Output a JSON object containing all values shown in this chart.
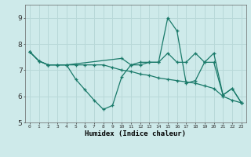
{
  "title": "",
  "xlabel": "Humidex (Indice chaleur)",
  "background_color": "#ceeaea",
  "grid_color": "#b8d8d8",
  "line_color": "#1a7a6a",
  "xlim": [
    -0.5,
    23.5
  ],
  "ylim": [
    5,
    9.5
  ],
  "yticks": [
    5,
    6,
    7,
    8,
    9
  ],
  "xticks": [
    0,
    1,
    2,
    3,
    4,
    5,
    6,
    7,
    8,
    9,
    10,
    11,
    12,
    13,
    14,
    15,
    16,
    17,
    18,
    19,
    20,
    21,
    22,
    23
  ],
  "series1_x": [
    0,
    1,
    2,
    3,
    4,
    10,
    11,
    12,
    13,
    14,
    15,
    16,
    17,
    18,
    19,
    20,
    21,
    22,
    23
  ],
  "series1_y": [
    7.7,
    7.35,
    7.2,
    7.2,
    7.2,
    7.45,
    7.2,
    7.3,
    7.3,
    7.3,
    7.65,
    7.3,
    7.3,
    7.65,
    7.3,
    7.3,
    6.05,
    6.3,
    5.75
  ],
  "series2_x": [
    0,
    1,
    2,
    3,
    4,
    5,
    6,
    7,
    8,
    9,
    10,
    11,
    12,
    13,
    14,
    15,
    16,
    17,
    18,
    19,
    20,
    21,
    22,
    23
  ],
  "series2_y": [
    7.7,
    7.35,
    7.2,
    7.2,
    7.2,
    6.65,
    6.25,
    5.85,
    5.5,
    5.65,
    6.75,
    7.2,
    7.2,
    7.3,
    7.3,
    9.0,
    8.5,
    6.5,
    6.6,
    7.3,
    7.65,
    6.05,
    6.3,
    5.75
  ],
  "series3_x": [
    0,
    1,
    2,
    3,
    4,
    5,
    6,
    7,
    8,
    9,
    10,
    11,
    12,
    13,
    14,
    15,
    16,
    17,
    18,
    19,
    20,
    21,
    22,
    23
  ],
  "series3_y": [
    7.7,
    7.35,
    7.2,
    7.2,
    7.2,
    7.2,
    7.2,
    7.2,
    7.2,
    7.1,
    7.0,
    6.95,
    6.85,
    6.8,
    6.7,
    6.65,
    6.6,
    6.55,
    6.5,
    6.4,
    6.3,
    6.0,
    5.85,
    5.75
  ]
}
